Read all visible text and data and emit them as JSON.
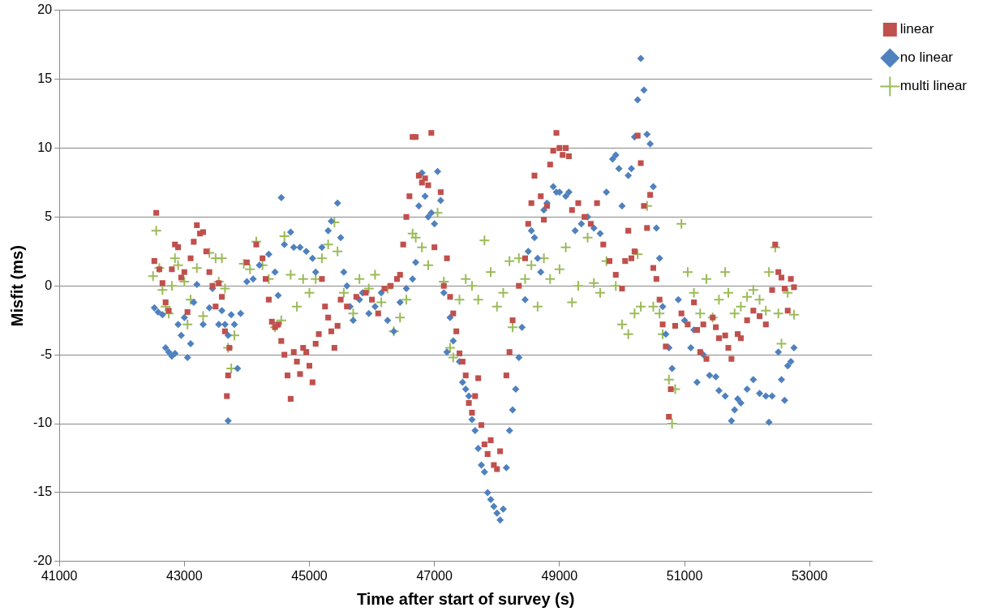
{
  "chart_data": {
    "type": "scatter",
    "xlabel": "Time after start of survey (s)",
    "ylabel": "Misfit (ms)",
    "xlim": [
      41000,
      54000
    ],
    "xticks": [
      41000,
      43000,
      45000,
      47000,
      49000,
      51000,
      53000
    ],
    "ylim": [
      -20,
      20
    ],
    "yticks": [
      -20,
      -15,
      -10,
      -5,
      0,
      5,
      10,
      15,
      20
    ],
    "grid": "y",
    "legend": "top right",
    "series": [
      {
        "name": "linear",
        "color": "#c0504d",
        "marker": "square",
        "x": [
          42550,
          42520,
          42600,
          42650,
          42700,
          42750,
          42800,
          42850,
          42900,
          42950,
          43000,
          43050,
          43100,
          43150,
          43200,
          43250,
          43300,
          43350,
          43400,
          43450,
          43500,
          43550,
          43600,
          43650,
          43700,
          43680,
          43720,
          44000,
          44150,
          44250,
          44300,
          44350,
          44400,
          44450,
          44500,
          44550,
          44600,
          44650,
          44700,
          44750,
          44800,
          44850,
          44900,
          44950,
          45000,
          45050,
          45100,
          45150,
          45200,
          45250,
          45300,
          45350,
          45400,
          45450,
          45500,
          45600,
          45750,
          45900,
          46000,
          46100,
          46200,
          46300,
          46400,
          46450,
          46500,
          46550,
          46600,
          46650,
          46700,
          46750,
          46800,
          46850,
          46900,
          46950,
          47000,
          47100,
          47150,
          47200,
          47250,
          47300,
          47350,
          47400,
          47450,
          47500,
          47550,
          47600,
          47650,
          47700,
          47750,
          47800,
          47850,
          47900,
          47950,
          48000,
          48050,
          48150,
          48200,
          48250,
          48350,
          48450,
          48500,
          48550,
          48600,
          48700,
          48750,
          48800,
          48850,
          48900,
          48950,
          49000,
          49050,
          49100,
          49150,
          49200,
          49300,
          49400,
          49500,
          49600,
          49700,
          49800,
          49900,
          50000,
          50050,
          50100,
          50150,
          50200,
          50250,
          50300,
          50350,
          50400,
          50450,
          50500,
          50550,
          50600,
          50650,
          50700,
          50750,
          50780,
          50850,
          50950,
          51050,
          51150,
          51200,
          51250,
          51300,
          51350,
          51450,
          51500,
          51550,
          51650,
          51700,
          51750,
          51850,
          51900,
          52000,
          52100,
          52200,
          52300,
          52400,
          52450,
          52500,
          52550,
          52600,
          52650,
          52700,
          52750
        ],
        "values": [
          5.3,
          1.8,
          1.2,
          0.2,
          -1.2,
          -1.8,
          1.2,
          3.0,
          2.8,
          0.6,
          1.0,
          -1.9,
          2.0,
          3.2,
          4.4,
          3.8,
          3.9,
          2.5,
          1.0,
          0.0,
          -1.5,
          0.2,
          -0.8,
          -3.3,
          -6.5,
          -8.0,
          -4.5,
          1.7,
          3.0,
          2.0,
          0.5,
          -1.0,
          -2.6,
          -3.0,
          -2.8,
          -4.0,
          -5.0,
          -6.5,
          -8.2,
          -4.8,
          -5.5,
          -6.4,
          -4.5,
          -4.8,
          -5.8,
          -7.0,
          -4.2,
          -3.5,
          0.5,
          -1.5,
          -2.3,
          -3.3,
          -4.5,
          -2.9,
          -1.0,
          -1.5,
          -0.8,
          -0.5,
          -1.0,
          -2.0,
          -0.2,
          0.0,
          0.5,
          0.8,
          3.0,
          5.0,
          6.5,
          10.8,
          10.8,
          8.0,
          7.5,
          7.8,
          7.3,
          11.1,
          2.8,
          6.8,
          0.0,
          2.0,
          -0.8,
          -2.0,
          -3.3,
          -4.9,
          -5.5,
          -6.5,
          -8.5,
          -9.2,
          -8.0,
          -6.7,
          -10.1,
          -11.5,
          -12.2,
          -11.2,
          -13.0,
          -13.3,
          -12.0,
          -6.5,
          -4.8,
          -2.5,
          0.0,
          2.0,
          4.5,
          6.0,
          8.0,
          6.5,
          4.8,
          5.8,
          8.8,
          9.8,
          11.1,
          10.0,
          9.5,
          10.0,
          9.4,
          5.5,
          6.0,
          5.0,
          4.5,
          6.0,
          3.0,
          1.8,
          0.8,
          -0.2,
          1.8,
          4.0,
          2.0,
          2.5,
          10.9,
          8.9,
          5.8,
          4.2,
          6.6,
          1.3,
          0.5,
          -1.0,
          -2.8,
          -4.4,
          -9.5,
          -7.5,
          -2.9,
          -2.0,
          -2.8,
          -1.2,
          -3.2,
          -4.8,
          -2.8,
          -5.3,
          -2.3,
          -3.0,
          -3.8,
          -3.6,
          -4.5,
          -5.3,
          -3.5,
          -3.8,
          -2.5,
          -1.8,
          -2.2,
          -2.8,
          -0.3,
          3.0,
          1.0,
          0.6,
          -0.2,
          -1.8,
          0.5,
          -0.1
        ]
      },
      {
        "name": "no linear",
        "color": "#4f81bd",
        "marker": "diamond",
        "x": [
          42520,
          42580,
          42650,
          42700,
          42750,
          42800,
          42850,
          42900,
          42950,
          43000,
          43050,
          43100,
          43150,
          43200,
          43300,
          43400,
          43450,
          43550,
          43600,
          43650,
          43700,
          43750,
          43800,
          43850,
          43700,
          43900,
          44000,
          44100,
          44200,
          44350,
          44450,
          44500,
          44550,
          44600,
          44700,
          44750,
          44850,
          44950,
          45050,
          45100,
          45200,
          45300,
          45350,
          45450,
          45500,
          45550,
          45600,
          45650,
          45700,
          45800,
          45850,
          45950,
          46050,
          46150,
          46250,
          46350,
          46450,
          46550,
          46650,
          46700,
          46750,
          46800,
          46850,
          46900,
          46950,
          47000,
          47050,
          47100,
          47150,
          47200,
          47250,
          47300,
          47400,
          47450,
          47500,
          47550,
          47600,
          47650,
          47700,
          47750,
          47800,
          47850,
          47900,
          47950,
          48000,
          48050,
          48100,
          48150,
          48200,
          48250,
          48300,
          48350,
          48400,
          48450,
          48500,
          48550,
          48600,
          48650,
          48700,
          48750,
          48800,
          48900,
          48950,
          49000,
          49100,
          49150,
          49250,
          49350,
          49450,
          49550,
          49650,
          49750,
          49850,
          49900,
          49950,
          50000,
          50100,
          50150,
          50200,
          50250,
          50300,
          50350,
          50400,
          50450,
          50500,
          50550,
          50600,
          50650,
          50700,
          50750,
          50800,
          50900,
          51000,
          51100,
          51150,
          51200,
          51300,
          51400,
          51500,
          51550,
          51650,
          51750,
          51800,
          51850,
          51900,
          52000,
          52100,
          52200,
          52300,
          52350,
          52400,
          52500,
          52550,
          52600,
          52650,
          52700,
          52750
        ],
        "values": [
          -1.6,
          -1.9,
          -2.1,
          -4.5,
          -4.8,
          -5.1,
          -4.9,
          -2.8,
          -3.6,
          -2.3,
          -5.2,
          -4.2,
          -1.2,
          0.1,
          -2.8,
          -1.6,
          -0.2,
          -2.8,
          -1.8,
          -2.8,
          -3.6,
          -2.1,
          -2.8,
          -6.0,
          -9.8,
          -2.0,
          0.3,
          0.5,
          1.5,
          2.3,
          1.0,
          -0.7,
          6.4,
          3.0,
          3.9,
          2.8,
          2.8,
          2.5,
          2.0,
          1.0,
          2.8,
          4.0,
          4.7,
          6.0,
          3.5,
          1.0,
          0.0,
          -1.5,
          -2.5,
          -1.0,
          -0.5,
          -2.0,
          -1.5,
          -0.5,
          -2.5,
          -3.3,
          -1.2,
          -0.2,
          0.5,
          1.7,
          5.8,
          8.2,
          6.5,
          5.0,
          5.3,
          4.5,
          8.3,
          6.2,
          -0.5,
          -4.8,
          -2.3,
          -4.0,
          -5.5,
          -7.0,
          -7.5,
          -8.0,
          -9.7,
          -10.5,
          -11.8,
          -13.0,
          -13.5,
          -15.0,
          -15.5,
          -16.0,
          -16.5,
          -17.0,
          -16.2,
          -13.2,
          -10.5,
          -9.0,
          -7.5,
          -5.2,
          -3.0,
          -1.0,
          2.5,
          4.0,
          3.5,
          2.0,
          1.0,
          5.5,
          6.0,
          7.2,
          6.8,
          6.8,
          6.5,
          6.8,
          4.0,
          4.5,
          5.0,
          4.2,
          3.8,
          6.8,
          9.2,
          9.5,
          8.5,
          5.8,
          8.0,
          8.5,
          10.8,
          13.5,
          16.5,
          14.2,
          11.0,
          10.3,
          7.2,
          4.2,
          2.0,
          -1.5,
          -3.5,
          -4.5,
          -6.0,
          -1.0,
          -2.5,
          -4.5,
          -3.2,
          -7.0,
          -5.0,
          -6.5,
          -6.6,
          -7.6,
          -8.0,
          -9.8,
          -9.0,
          -8.2,
          -8.5,
          -7.5,
          -6.8,
          -7.8,
          -8.0,
          -9.9,
          -8.0,
          -4.8,
          -6.8,
          -8.3,
          -5.8,
          -5.5,
          -4.5
        ]
      },
      {
        "name": "multi linear",
        "color": "#9bbb59",
        "marker": "cross",
        "x": [
          42550,
          42500,
          42600,
          42650,
          42700,
          42750,
          42800,
          42850,
          42900,
          43000,
          43050,
          43100,
          43200,
          43300,
          43400,
          43500,
          43550,
          43600,
          43650,
          43700,
          43750,
          43800,
          43950,
          44050,
          44150,
          44250,
          44350,
          44450,
          44550,
          44600,
          44700,
          44800,
          44900,
          45000,
          45100,
          45200,
          45300,
          45400,
          45450,
          45550,
          45700,
          45800,
          45950,
          46050,
          46150,
          46250,
          46350,
          46450,
          46550,
          46650,
          46700,
          46800,
          46900,
          47050,
          47150,
          47250,
          47300,
          47400,
          47500,
          47600,
          47700,
          47800,
          47900,
          48000,
          48100,
          48200,
          48250,
          48350,
          48450,
          48550,
          48650,
          48750,
          48850,
          49000,
          49100,
          49200,
          49300,
          49450,
          49550,
          49650,
          49750,
          49900,
          50000,
          50100,
          50200,
          50250,
          50300,
          50400,
          50500,
          50600,
          50650,
          50750,
          50800,
          50850,
          50950,
          51050,
          51150,
          51250,
          51350,
          51450,
          51550,
          51650,
          51700,
          51800,
          51900,
          52000,
          52100,
          52200,
          52300,
          52350,
          52450,
          52500,
          52550,
          52650,
          52750
        ],
        "values": [
          4.0,
          0.7,
          1.3,
          -0.3,
          -1.5,
          -2.0,
          0.0,
          2.0,
          1.5,
          0.3,
          -2.8,
          -1.0,
          1.3,
          -2.2,
          2.4,
          2.0,
          0.3,
          2.0,
          -0.2,
          -4.5,
          -6.0,
          -3.6,
          1.6,
          1.2,
          3.2,
          1.5,
          0.5,
          -3.0,
          -2.5,
          3.6,
          0.8,
          -1.5,
          0.5,
          -0.5,
          0.5,
          2.0,
          3.0,
          4.6,
          2.5,
          -0.5,
          -2.0,
          0.5,
          -0.2,
          0.8,
          -1.2,
          -0.2,
          -3.3,
          -2.3,
          -1.0,
          3.8,
          3.5,
          2.8,
          1.5,
          5.3,
          0.3,
          -4.5,
          -5.2,
          -1.0,
          0.5,
          0.0,
          -1.0,
          3.3,
          1.0,
          -1.5,
          -0.5,
          1.8,
          -3.0,
          2.0,
          0.5,
          1.5,
          -1.5,
          2.0,
          0.5,
          1.2,
          2.8,
          -1.2,
          0.0,
          3.5,
          0.2,
          -0.5,
          1.8,
          0.0,
          -2.8,
          -3.5,
          -2.0,
          2.3,
          -1.5,
          5.8,
          -1.5,
          -2.0,
          -3.5,
          -6.8,
          -10.0,
          -7.5,
          4.5,
          1.0,
          -0.5,
          -2.0,
          0.5,
          -2.3,
          -1.0,
          1.0,
          -0.5,
          -2.0,
          -1.5,
          -0.8,
          -0.3,
          -1.0,
          -1.8,
          1.0,
          2.8,
          -2.0,
          -4.2,
          -0.5,
          -2.1
        ]
      }
    ]
  }
}
